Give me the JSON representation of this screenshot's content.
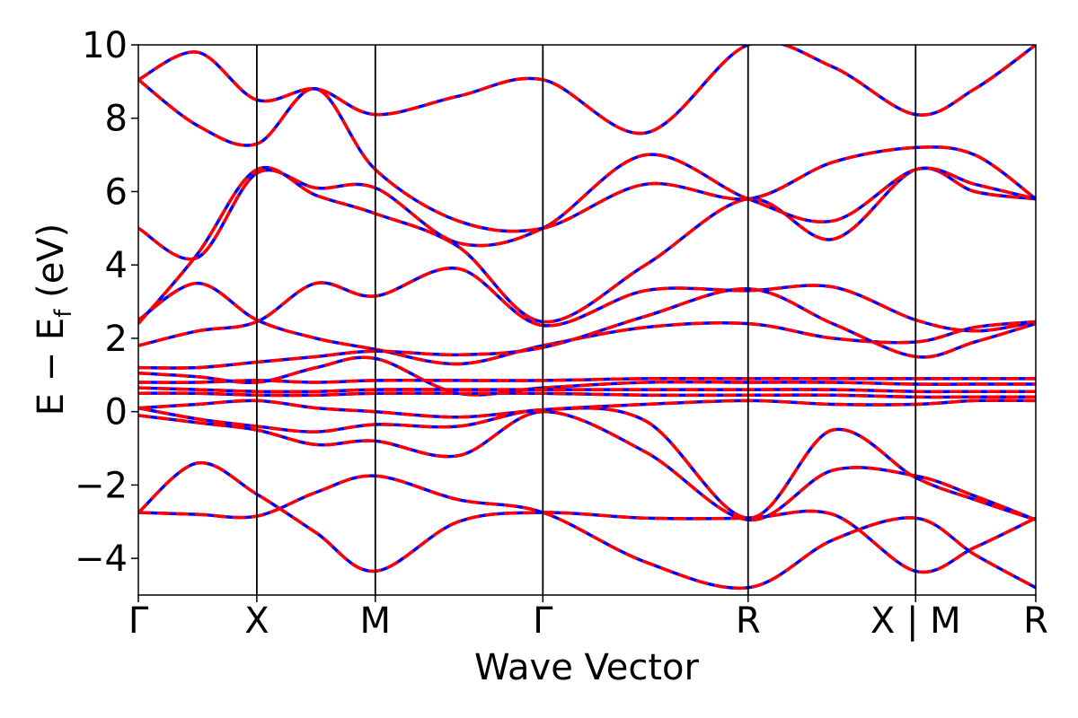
{
  "chart_data": {
    "type": "line",
    "title": "",
    "xlabel": "Wave Vector",
    "ylabel": "E − E_f (eV)",
    "ylabel_main": "E − E",
    "ylabel_sub": "f",
    "ylabel_unit": " (eV)",
    "ylim": [
      -5,
      10
    ],
    "yticks": [
      -4,
      -2,
      0,
      2,
      4,
      6,
      8,
      10
    ],
    "ytick_labels": [
      "−4",
      "−2",
      "0",
      "2",
      "4",
      "6",
      "8",
      "10"
    ],
    "grid": false,
    "legend": "none",
    "kpath": [
      {
        "label": "Γ",
        "x": 0.0
      },
      {
        "label": "X",
        "x": 0.5
      },
      {
        "label": "M",
        "x": 1.0
      },
      {
        "label": "Γ",
        "x": 1.707
      },
      {
        "label": "R",
        "x": 2.573
      },
      {
        "label": "X | M",
        "x": 3.28
      },
      {
        "label": "R",
        "x": 3.787
      }
    ],
    "xlim": [
      0.0,
      3.787
    ],
    "series_styles": [
      {
        "key": "dft",
        "color": "#0000ff",
        "dash": "solid"
      },
      {
        "key": "fit",
        "color": "#ff0000",
        "dash": "dashed"
      }
    ],
    "bands": [
      {
        "x": [
          0,
          0.25,
          0.5,
          0.75,
          1.0,
          1.35,
          1.707,
          2.14,
          2.573,
          2.93,
          3.28,
          3.53,
          3.787
        ],
        "y": [
          -2.75,
          -2.8,
          -2.85,
          -2.2,
          -1.75,
          -2.4,
          -2.75,
          -4.1,
          -4.8,
          -3.5,
          -2.9,
          -3.9,
          -4.8
        ]
      },
      {
        "x": [
          0,
          0.25,
          0.5,
          0.75,
          1.0,
          1.35,
          1.707,
          2.14,
          2.573,
          2.93,
          3.28,
          3.53,
          3.787
        ],
        "y": [
          -2.75,
          -1.4,
          -2.25,
          -3.3,
          -4.35,
          -3.0,
          -2.75,
          -2.9,
          -2.9,
          -2.8,
          -4.35,
          -3.7,
          -2.9
        ]
      },
      {
        "x": [
          0,
          0.25,
          0.5,
          0.75,
          1.0,
          1.35,
          1.707,
          2.14,
          2.573,
          2.93,
          3.28,
          3.53,
          3.787
        ],
        "y": [
          -0.1,
          -0.3,
          -0.5,
          -0.9,
          -0.8,
          -1.2,
          0.0,
          -1.1,
          -2.95,
          -1.6,
          -1.75,
          -2.3,
          -2.95
        ]
      },
      {
        "x": [
          0,
          0.25,
          0.5,
          0.75,
          1.0,
          1.35,
          1.707,
          2.14,
          2.573,
          2.93,
          3.28,
          3.53,
          3.787
        ],
        "y": [
          0.1,
          -0.2,
          -0.4,
          -0.55,
          -0.35,
          -0.4,
          0.05,
          -0.25,
          -2.9,
          -0.5,
          -1.8,
          -2.4,
          -2.95
        ]
      },
      {
        "x": [
          0,
          0.25,
          0.5,
          0.75,
          1.0,
          1.35,
          1.707,
          2.14,
          2.573,
          2.93,
          3.28,
          3.53,
          3.787
        ],
        "y": [
          1.8,
          2.2,
          2.45,
          3.5,
          3.15,
          3.9,
          2.35,
          3.3,
          3.3,
          3.4,
          2.5,
          2.2,
          2.45
        ]
      },
      {
        "x": [
          0,
          0.25,
          0.5,
          0.75,
          1.0,
          1.35,
          1.707,
          2.14,
          2.573,
          2.93,
          3.28,
          3.53,
          3.787
        ],
        "y": [
          2.5,
          3.5,
          2.5,
          2.0,
          1.7,
          1.3,
          1.8,
          2.3,
          2.4,
          2.0,
          1.9,
          2.3,
          2.45
        ]
      },
      {
        "x": [
          0,
          0.25,
          0.5,
          0.75,
          1.0,
          1.35,
          1.707,
          2.14,
          2.573,
          2.93,
          3.28,
          3.53,
          3.787
        ],
        "y": [
          2.4,
          4.3,
          6.6,
          5.9,
          5.4,
          4.5,
          2.45,
          4.0,
          5.8,
          4.7,
          6.6,
          6.0,
          5.8
        ]
      },
      {
        "x": [
          0,
          0.25,
          0.5,
          0.75,
          1.0,
          1.35,
          1.707,
          2.14,
          2.573,
          2.93,
          3.28,
          3.53,
          3.787
        ],
        "y": [
          5.0,
          4.2,
          6.5,
          6.1,
          6.1,
          4.6,
          5.0,
          7.0,
          5.8,
          5.2,
          6.6,
          6.2,
          5.8
        ]
      },
      {
        "x": [
          0,
          0.25,
          0.5,
          0.75,
          1.0,
          1.35,
          1.707,
          2.14,
          2.573,
          2.93,
          3.28,
          3.53,
          3.787
        ],
        "y": [
          9.05,
          7.8,
          7.3,
          8.8,
          6.6,
          5.2,
          5.0,
          6.2,
          5.8,
          6.8,
          7.2,
          7.0,
          5.8
        ]
      },
      {
        "x": [
          0,
          0.25,
          0.5,
          0.75,
          1.0,
          1.35,
          1.707,
          2.14,
          2.573,
          2.93,
          3.28,
          3.53,
          3.787
        ],
        "y": [
          9.05,
          9.8,
          8.5,
          8.8,
          8.1,
          8.6,
          9.05,
          7.6,
          10.0,
          9.4,
          8.1,
          8.8,
          10.0
        ]
      },
      {
        "x": [
          0,
          0.25,
          0.5,
          0.75,
          1.0,
          1.35,
          1.707,
          2.14,
          2.573,
          2.93,
          3.28,
          3.53,
          3.787
        ],
        "y": [
          1.2,
          1.2,
          1.35,
          1.5,
          1.65,
          1.55,
          1.75,
          2.6,
          3.35,
          2.4,
          1.5,
          1.9,
          2.4
        ]
      },
      {
        "x": [
          0,
          0.25,
          0.5,
          0.75,
          1.0,
          1.35,
          1.707,
          2.14,
          2.573,
          2.93,
          3.28,
          3.53,
          3.787
        ],
        "y": [
          1.05,
          0.95,
          0.8,
          1.2,
          1.45,
          0.5,
          0.65,
          0.8,
          0.8,
          0.8,
          0.75,
          0.75,
          0.75
        ]
      },
      {
        "x": [
          0,
          0.25,
          0.5,
          0.75,
          1.0,
          1.35,
          1.707,
          2.14,
          2.573,
          2.93,
          3.28,
          3.53,
          3.787
        ],
        "y": [
          0.65,
          0.6,
          0.55,
          0.55,
          0.6,
          0.6,
          0.6,
          0.6,
          0.6,
          0.6,
          0.55,
          0.55,
          0.55
        ]
      },
      {
        "x": [
          0,
          0.25,
          0.5,
          0.75,
          1.0,
          1.35,
          1.707,
          2.14,
          2.573,
          2.93,
          3.28,
          3.53,
          3.787
        ],
        "y": [
          0.5,
          0.5,
          0.45,
          0.45,
          0.5,
          0.5,
          0.5,
          0.45,
          0.45,
          0.45,
          0.4,
          0.4,
          0.4
        ]
      },
      {
        "x": [
          0,
          0.25,
          0.5,
          0.75,
          1.0,
          1.35,
          1.707,
          2.14,
          2.573,
          2.93,
          3.28,
          3.53,
          3.787
        ],
        "y": [
          0.8,
          0.8,
          0.85,
          0.8,
          0.85,
          0.85,
          0.85,
          0.9,
          0.9,
          0.9,
          0.9,
          0.9,
          0.9
        ]
      },
      {
        "x": [
          0,
          0.25,
          0.5,
          0.75,
          1.0,
          1.35,
          1.707,
          2.14,
          2.573,
          2.93,
          3.28,
          3.53,
          3.787
        ],
        "y": [
          0.1,
          0.2,
          0.3,
          0.1,
          0.0,
          -0.15,
          0.05,
          0.2,
          0.3,
          0.2,
          0.2,
          0.3,
          0.3
        ]
      }
    ]
  }
}
